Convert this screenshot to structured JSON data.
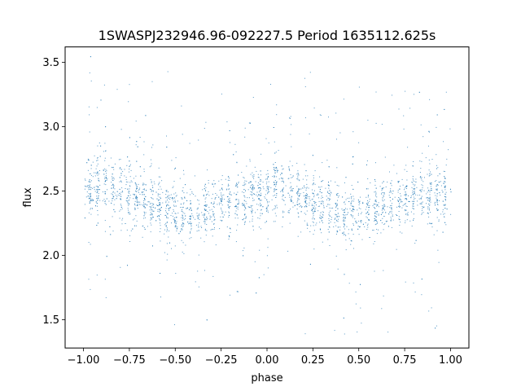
{
  "chart_data": {
    "type": "scatter",
    "title": "1SWASPJ232946.96-092227.5 Period 1635112.625s",
    "xlabel": "phase",
    "ylabel": "flux",
    "xlim": [
      -1.1,
      1.1
    ],
    "ylim": [
      1.28,
      3.62
    ],
    "xticks": [
      -1.0,
      -0.75,
      -0.5,
      -0.25,
      0.0,
      0.25,
      0.5,
      0.75,
      1.0
    ],
    "xtick_labels": [
      "−1.00",
      "−0.75",
      "−0.50",
      "−0.25",
      "0.00",
      "0.25",
      "0.50",
      "0.75",
      "1.00"
    ],
    "yticks": [
      1.5,
      2.0,
      2.5,
      3.0,
      3.5
    ],
    "ytick_labels": [
      "1.5",
      "2.0",
      "2.5",
      "3.0",
      "3.5"
    ],
    "grid": false,
    "marker_color": "#1f77b4",
    "point_density": {
      "description_free": true,
      "x_range": [
        -1.0,
        1.0
      ],
      "points_per_unit_phase": 9000,
      "cluster_spacing_phase": 0.042,
      "spread_core": 0.11,
      "spread_outliers": 0.55,
      "outlier_fraction": 0.15
    },
    "trend": {
      "x": [
        -1.0,
        -0.9,
        -0.8,
        -0.7,
        -0.6,
        -0.5,
        -0.4,
        -0.3,
        -0.2,
        -0.1,
        0.0,
        0.05,
        0.1,
        0.2,
        0.3,
        0.4,
        0.5,
        0.6,
        0.7,
        0.8,
        0.9,
        1.0
      ],
      "y": [
        2.48,
        2.55,
        2.53,
        2.45,
        2.38,
        2.33,
        2.32,
        2.37,
        2.43,
        2.46,
        2.47,
        2.55,
        2.53,
        2.45,
        2.38,
        2.33,
        2.32,
        2.37,
        2.43,
        2.47,
        2.48,
        2.47
      ]
    }
  }
}
